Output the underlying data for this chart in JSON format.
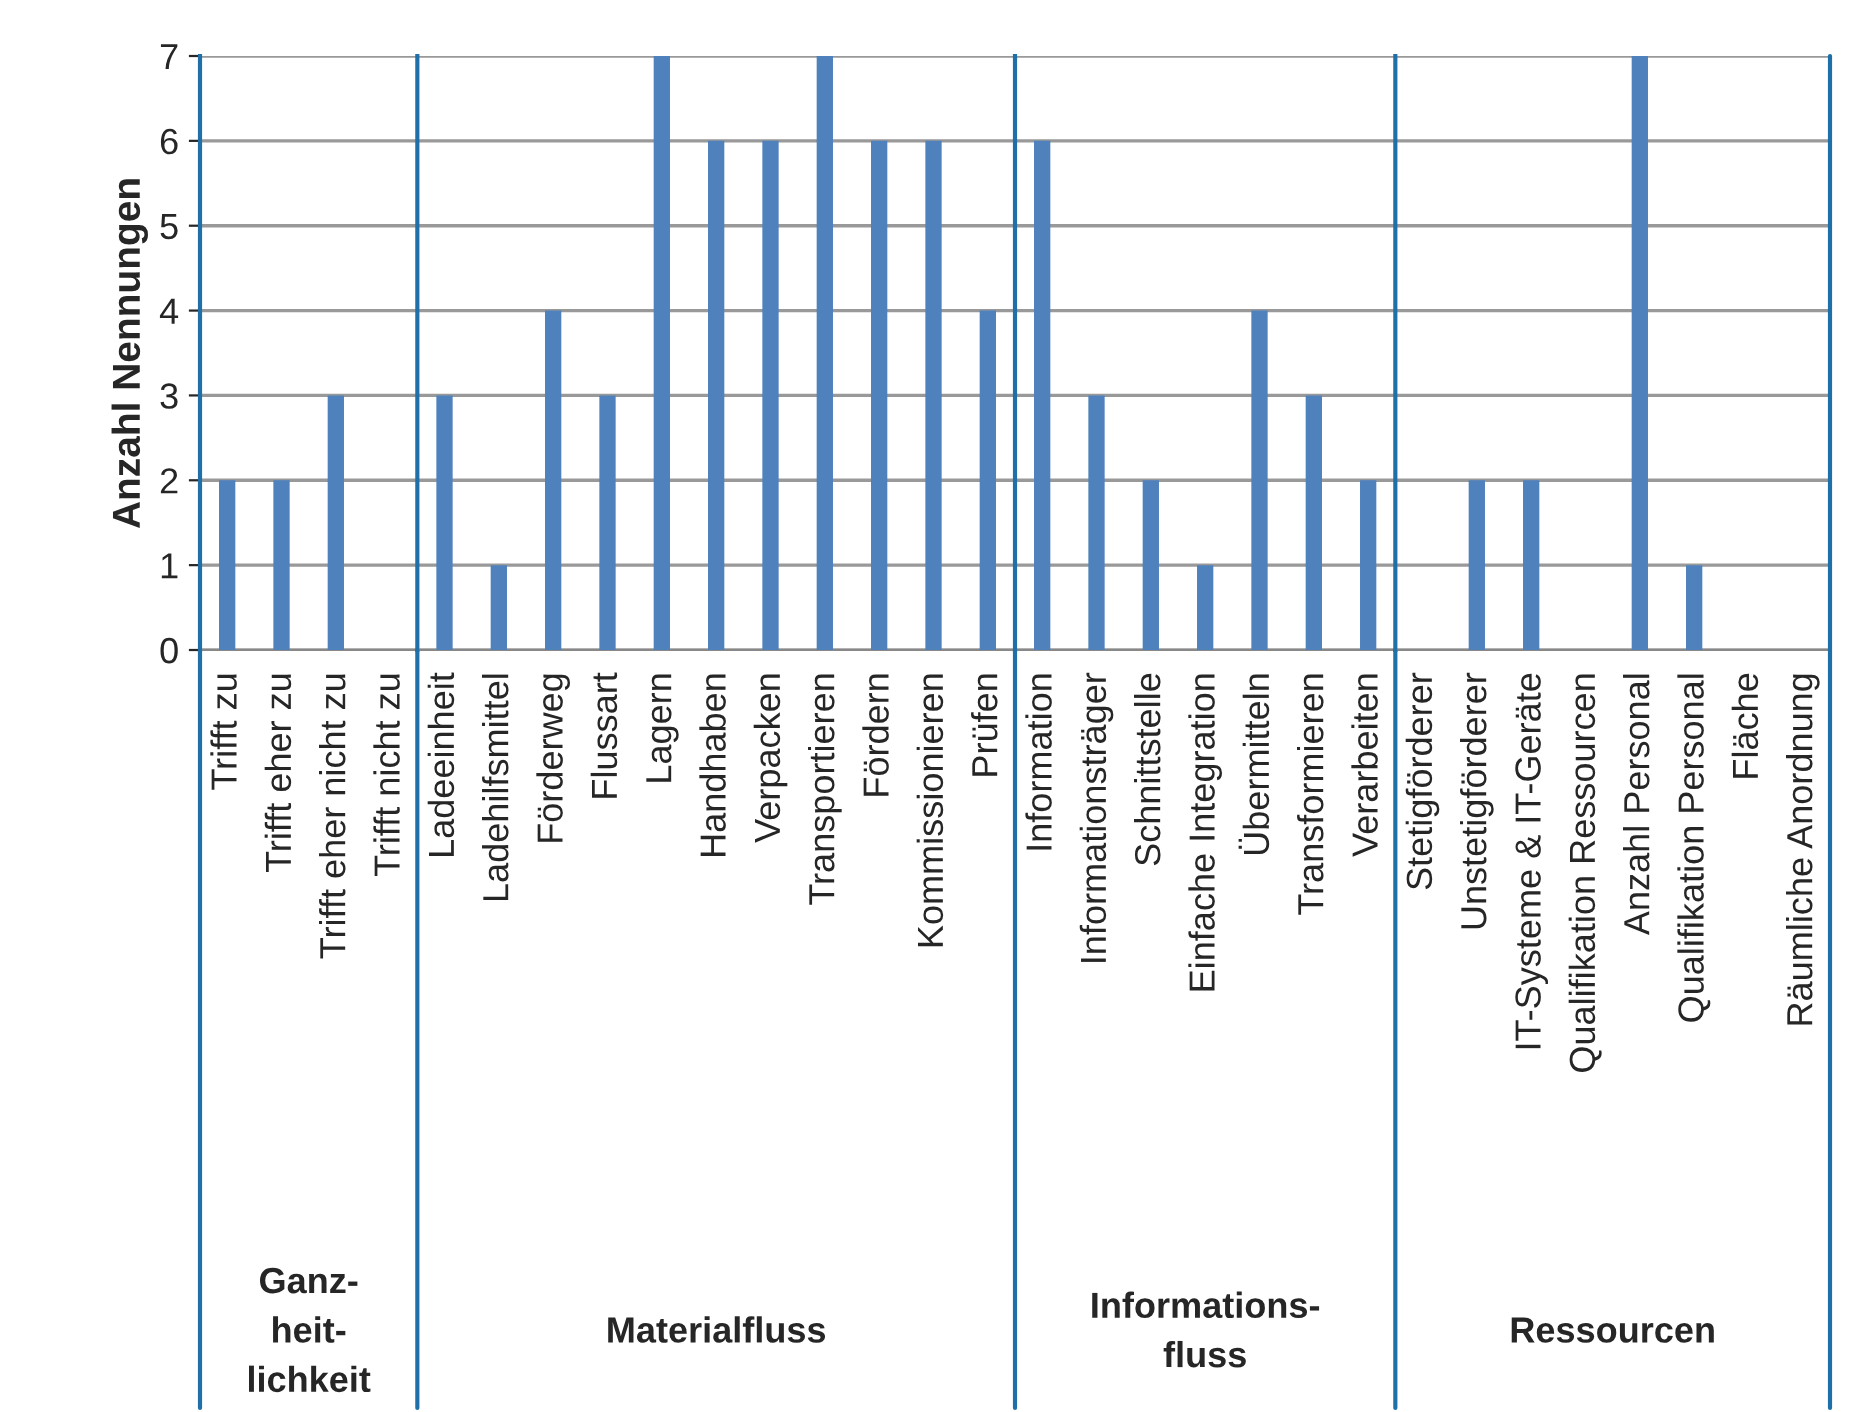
{
  "chart_data": [
    {
      "type": "bar",
      "ylabel": "Anzahl Nennungen",
      "xlabel": "Ganz-\nheit-\nlichkeit",
      "categories": [
        "Trifft zu",
        "Trifft eher zu",
        "Trifft eher nicht zu",
        "Trifft nicht zu"
      ],
      "values": [
        2,
        2,
        3,
        0
      ],
      "color": "#4f81bd",
      "ylim": [
        0,
        7
      ],
      "yticks": [
        0,
        1,
        2,
        3,
        4,
        5,
        6,
        7
      ],
      "grid": "y"
    },
    {
      "type": "bar",
      "xlabel": "Materialfluss",
      "categories": [
        "Ladeeinheit",
        "Ladehilfsmittel",
        "Förderweg",
        "Flussart",
        "Lagern",
        "Handhaben",
        "Verpacken",
        "Transportieren",
        "Fördern",
        "Kommissionieren",
        "Prüfen"
      ],
      "values": [
        3,
        1,
        4,
        3,
        7,
        6,
        6,
        7,
        6,
        6,
        4
      ],
      "color": "#4f81bd",
      "ylim": [
        0,
        7
      ],
      "yticks": [
        0,
        1,
        2,
        3,
        4,
        5,
        6,
        7
      ],
      "grid": "y",
      "tick_labels": "x"
    },
    {
      "type": "bar",
      "xlabel": "Informations-\nfluss",
      "categories": [
        "Information",
        "Informationsträger",
        "Schnittstelle",
        "Einfache Integration",
        "Übermitteln",
        "Transformieren",
        "Verarbeiten"
      ],
      "values": [
        6,
        3,
        2,
        1,
        4,
        3,
        2
      ],
      "color": "#4f81bd",
      "ylim": [
        0,
        7
      ],
      "yticks": [
        0,
        1,
        2,
        3,
        4,
        5,
        6,
        7
      ],
      "grid": "y",
      "tick_labels": "x"
    },
    {
      "type": "bar",
      "xlabel": "Ressourcen",
      "categories": [
        "Stetigförderer",
        "Unstetigförderer",
        "IT-Systeme & IT-Geräte",
        "Qualifikation Ressourcen",
        "Anzahl Personal",
        "Qualifikation Personal",
        "Fläche",
        "Räumliche Anordnung"
      ],
      "values": [
        0,
        2,
        2,
        0,
        7,
        1,
        0,
        0
      ],
      "color": "#4f81bd",
      "ylim": [
        0,
        7
      ],
      "yticks": [
        0,
        1,
        2,
        3,
        4,
        5,
        6,
        7
      ],
      "grid": "y",
      "tick_labels": "x"
    }
  ]
}
